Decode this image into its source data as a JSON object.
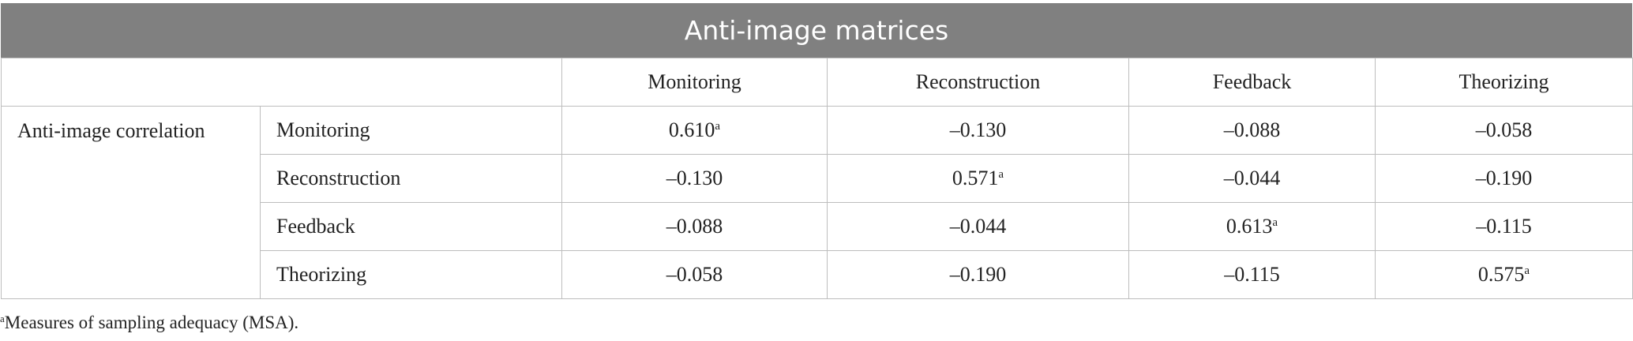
{
  "table": {
    "title": "Anti-image matrices",
    "columns": [
      "Monitoring",
      "Reconstruction",
      "Feedback",
      "Theorizing"
    ],
    "group": "Anti-image correlation",
    "rows": [
      {
        "label": "Monitoring",
        "cells": [
          {
            "value": "0.610",
            "sup": "a"
          },
          "–0.130",
          "–0.088",
          "–0.058"
        ]
      },
      {
        "label": "Reconstruction",
        "cells": [
          "–0.130",
          {
            "value": "0.571",
            "sup": "a"
          },
          "–0.044",
          "–0.190"
        ]
      },
      {
        "label": "Feedback",
        "cells": [
          "–0.088",
          "–0.044",
          {
            "value": "0.613",
            "sup": "a"
          },
          "–0.115"
        ]
      },
      {
        "label": "Theorizing",
        "cells": [
          "–0.058",
          "–0.190",
          "–0.115",
          {
            "value": "0.575",
            "sup": "a"
          }
        ]
      }
    ],
    "footnote": {
      "mark": "a",
      "text": "Measures of sampling adequacy (MSA)."
    }
  }
}
